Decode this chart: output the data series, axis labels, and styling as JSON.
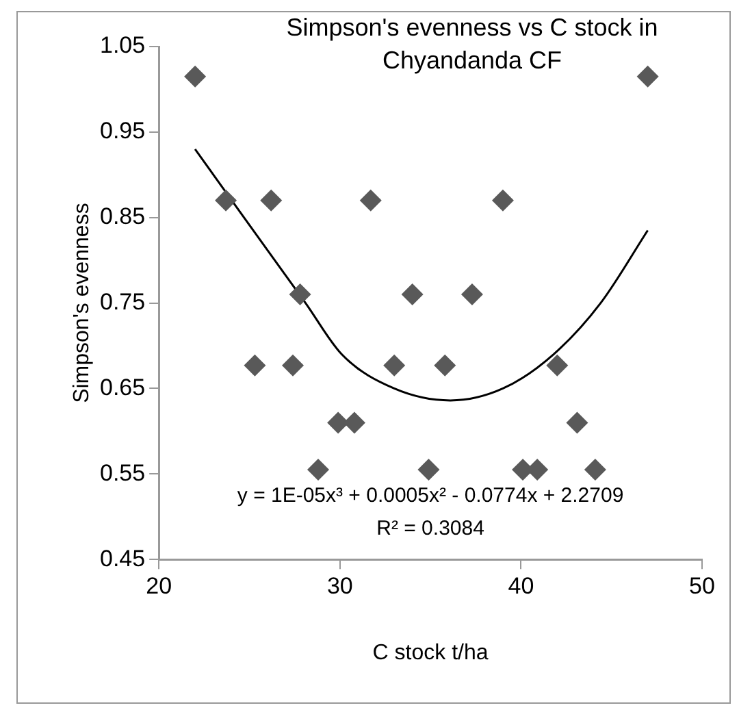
{
  "chart_data": {
    "type": "scatter",
    "title": "Simpson's evenness vs C stock in Chyandanda CF",
    "xlabel": "C stock t/ha",
    "ylabel": "Simpson's evenness",
    "series": [
      {
        "color": "#595959",
        "marker": "diamond",
        "x": [
          22,
          47,
          23.7,
          26.2,
          31.7,
          39.0,
          27.8,
          34.0,
          37.3,
          25.3,
          27.4,
          33.0,
          35.8,
          42.0,
          29.9,
          30.8,
          43.1,
          28.8,
          34.9,
          40.1,
          40.9,
          44.1
        ],
        "values": [
          1.015,
          1.015,
          0.87,
          0.87,
          0.87,
          0.87,
          0.76,
          0.76,
          0.76,
          0.677,
          0.677,
          0.677,
          0.677,
          0.677,
          0.61,
          0.61,
          0.61,
          0.555,
          0.555,
          0.555,
          0.555,
          0.555
        ]
      },
      {
        "type": "line",
        "color": "#000000",
        "marker": "none",
        "x": [
          22,
          24.7,
          28.1,
          30.1,
          33,
          36.1,
          39,
          41.8,
          44.4,
          47
        ],
        "values": [
          0.93,
          0.85,
          0.75,
          0.69,
          0.65,
          0.636,
          0.65,
          0.69,
          0.75,
          0.835
        ]
      }
    ],
    "xlim": [
      20,
      50
    ],
    "xticks": [
      20,
      30,
      40,
      50
    ],
    "ylim": [
      0.45,
      1.05
    ],
    "yticks": [
      0.45,
      0.55,
      0.65,
      0.75,
      0.85,
      0.95,
      1.05
    ],
    "annotations": [
      "y = 1E-05x³ + 0.0005x² - 0.0774x + 2.2709",
      "R² = 0.3084"
    ],
    "grid": false,
    "legend": false
  }
}
